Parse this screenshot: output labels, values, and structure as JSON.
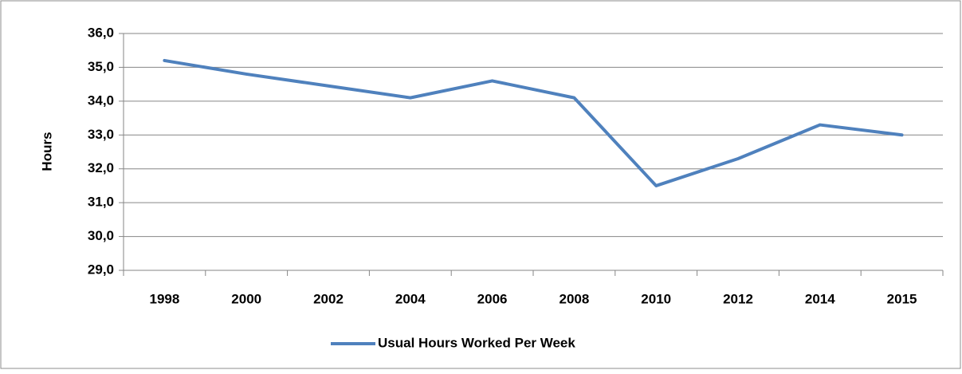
{
  "chart_data": {
    "type": "line",
    "y_label": "Hours",
    "categories": [
      "1998",
      "2000",
      "2002",
      "2004",
      "2006",
      "2008",
      "2010",
      "2012",
      "2014",
      "2015"
    ],
    "series": [
      {
        "name": "Usual Hours Worked Per Week",
        "color": "#4f81bd",
        "values": [
          35.2,
          34.8,
          34.45,
          34.1,
          34.6,
          34.1,
          31.5,
          32.3,
          33.3,
          33.0
        ]
      }
    ],
    "ylim": [
      29,
      36
    ],
    "yticks": [
      {
        "value": 29,
        "label": "29,0"
      },
      {
        "value": 30,
        "label": "30,0"
      },
      {
        "value": 31,
        "label": "31,0"
      },
      {
        "value": 32,
        "label": "32,0"
      },
      {
        "value": 33,
        "label": "33,0"
      },
      {
        "value": 34,
        "label": "34,0"
      },
      {
        "value": 35,
        "label": "35,0"
      },
      {
        "value": 36,
        "label": "36,0"
      }
    ],
    "grid": true,
    "legend": "bottom"
  }
}
